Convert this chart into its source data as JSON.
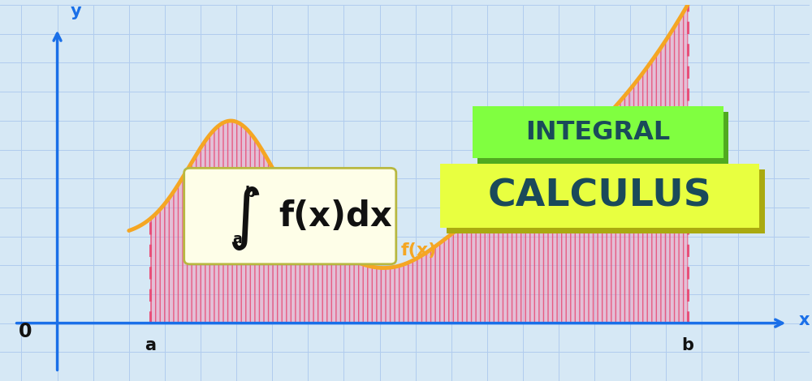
{
  "bg_color": "#d6e8f5",
  "grid_color": "#b0ccee",
  "axis_color": "#1a6fe8",
  "curve_color": "#f5a623",
  "fill_color": "#f48fb1",
  "fill_alpha": 0.35,
  "hatch_color": "#e8507a",
  "dashed_color": "#e8507a",
  "formula_bg": "#fefee8",
  "formula_border": "#b8b840",
  "text_dark": "#1a3a5c",
  "green_bright": "#80ff40",
  "green_shadow": "#50aa20",
  "yellow_bright": "#e8ff40",
  "yellow_shadow": "#aaaa10",
  "integral_text_color": "#1a4a5a",
  "title1": "INTEGRAL",
  "title2": "CALCULUS",
  "fx_label": "f(x)",
  "x_label": "x",
  "y_label": "y",
  "a_label": "a",
  "b_label": "b",
  "zero_label": "0",
  "xlim": [
    -0.8,
    10.5
  ],
  "ylim": [
    -1.0,
    5.5
  ],
  "a_x": 1.3,
  "b_x": 8.8
}
